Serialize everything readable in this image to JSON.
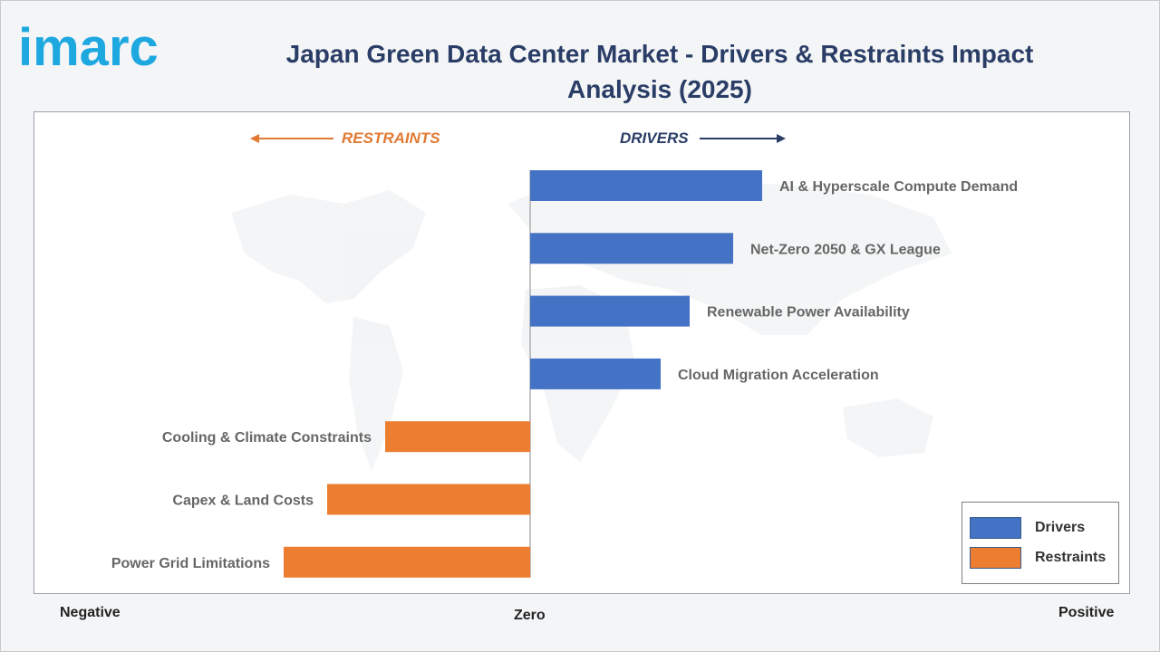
{
  "brand": {
    "logo_text": "imarc"
  },
  "title": "Japan Green Data Center Market - Drivers & Restraints Impact Analysis (2025)",
  "direction_labels": {
    "restraints": "RESTRAINTS",
    "drivers": "DRIVERS"
  },
  "axis_words": {
    "negative": "Negative",
    "zero": "Zero",
    "positive": "Positive"
  },
  "legend": {
    "drivers": "Drivers",
    "restraints": "Restraints"
  },
  "colors": {
    "drivers": "#4472c4",
    "restraints": "#ed7d31",
    "title": "#2a3d66",
    "drivers_arrow": "#2a3d66",
    "restraints_arrow": "#e07a33",
    "logo": "#1ea8e0"
  },
  "chart_data": {
    "type": "bar",
    "orientation": "horizontal",
    "series": [
      {
        "name": "Drivers",
        "categories": [
          "AI & Hyperscale Compute Demand",
          "Net-Zero 2050 & GX League",
          "Renewable Power Availability",
          "Cloud Migration Acceleration"
        ],
        "values": [
          0.8,
          0.7,
          0.55,
          0.45
        ]
      },
      {
        "name": "Restraints",
        "categories": [
          "Cooling & Climate Constraints",
          "Capex & Land Costs",
          "Power Grid Limitations"
        ],
        "values": [
          -0.5,
          -0.7,
          -0.85
        ]
      }
    ],
    "xlim": [
      -1.71,
      2.06
    ],
    "grid": false,
    "legend_position": "bottom-right"
  }
}
